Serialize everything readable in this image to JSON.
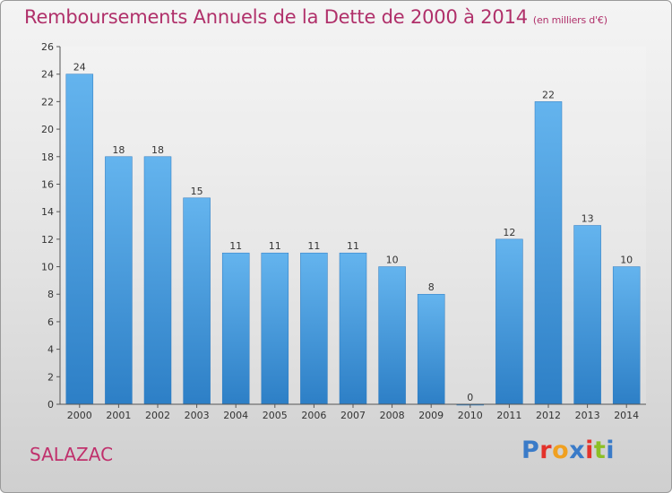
{
  "header": {
    "title": "Remboursements Annuels de la Dette de 2000 à 2014",
    "subtitle": "(en milliers d'€)"
  },
  "footer": {
    "commune": "SALAZAC",
    "logo_letters": [
      {
        "ch": "P",
        "color": "#3a7bc8"
      },
      {
        "ch": "r",
        "color": "#e3322b"
      },
      {
        "ch": "o",
        "color": "#f0a020"
      },
      {
        "ch": "x",
        "color": "#3a7bc8"
      },
      {
        "ch": "i",
        "color": "#e3322b"
      },
      {
        "ch": "t",
        "color": "#8cbf26"
      },
      {
        "ch": "i",
        "color": "#3a7bc8"
      }
    ]
  },
  "chart_data": {
    "type": "bar",
    "categories": [
      "2000",
      "2001",
      "2002",
      "2003",
      "2004",
      "2005",
      "2006",
      "2007",
      "2008",
      "2009",
      "2010",
      "2011",
      "2012",
      "2013",
      "2014"
    ],
    "values": [
      24,
      18,
      18,
      15,
      11,
      11,
      11,
      11,
      10,
      8,
      0,
      12,
      22,
      13,
      10
    ],
    "title": "Remboursements Annuels de la Dette de 2000 à 2014",
    "subtitle": "(en milliers d'€)",
    "ylim": [
      0,
      26
    ],
    "yticks": [
      0,
      2,
      4,
      6,
      8,
      10,
      12,
      14,
      16,
      18,
      20,
      22,
      24,
      26
    ],
    "grid": false,
    "legend": "none",
    "bar_color": "#4a9ee0"
  }
}
